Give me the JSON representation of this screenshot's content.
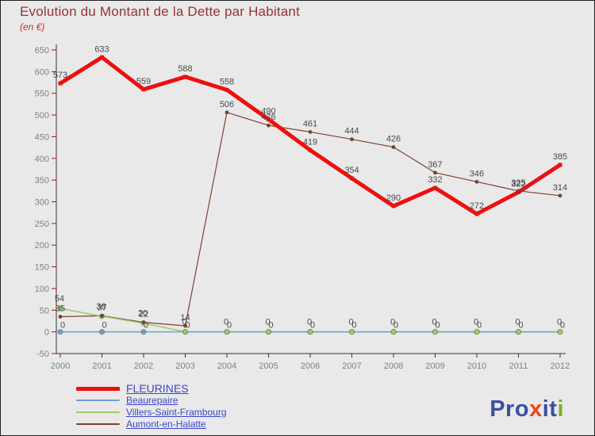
{
  "title": "Evolution du Montant de la Dette par Habitant",
  "subtitle": "(en €)",
  "chart_data": {
    "type": "line",
    "x": [
      "2000",
      "2001",
      "2002",
      "2003",
      "2004",
      "2005",
      "2006",
      "2007",
      "2008",
      "2009",
      "2010",
      "2011",
      "2012"
    ],
    "ylim": [
      -50,
      650
    ],
    "ytick_step": 50,
    "grid": false,
    "legend_position": "bottom-left",
    "axis_text_color": "#808080",
    "tick_color": "#cc0000",
    "axis_line_color": "#333333",
    "label_color": "#4a4a4a",
    "series": [
      {
        "name": "FLEURINES",
        "color": "#ee0f0f",
        "width": 5,
        "marker": "square",
        "marker_size": 2.5,
        "values": [
          573,
          633,
          559,
          588,
          558,
          490,
          419,
          354,
          290,
          332,
          272,
          322,
          385
        ]
      },
      {
        "name": "Beaurepaire",
        "color": "#6f9fcb",
        "width": 1.5,
        "marker": "circle",
        "marker_size": 3.2,
        "label_offset": [
          3,
          -5
        ],
        "values": [
          0,
          0,
          0,
          0,
          0,
          0,
          0,
          0,
          0,
          0,
          0,
          0,
          0
        ]
      },
      {
        "name": "Villers-Saint-Frambourg",
        "color": "#9bc968",
        "width": 1.5,
        "marker": "circle",
        "marker_size": 3.2,
        "label_offset": [
          -1,
          -9
        ],
        "values": [
          54,
          36,
          20,
          0,
          0,
          0,
          0,
          0,
          0,
          0,
          0,
          0,
          0
        ]
      },
      {
        "name": "Aumont-en-Halatte",
        "color": "#7e4031",
        "width": 1.2,
        "marker": "circle",
        "marker_size": 2.2,
        "values": [
          35,
          37,
          22,
          14,
          506,
          476,
          461,
          444,
          426,
          367,
          346,
          325,
          314
        ]
      }
    ]
  },
  "logo": {
    "letters": [
      {
        "ch": "P",
        "color": "#3c50a0"
      },
      {
        "ch": "r",
        "color": "#3c50a0"
      },
      {
        "ch": "o",
        "color": "#3c50a0"
      },
      {
        "ch": "x",
        "color": "#ea4a1a"
      },
      {
        "ch": "i",
        "color": "#3c50a0"
      },
      {
        "ch": "t",
        "color": "#3c50a0"
      },
      {
        "ch": "i",
        "color": "#76b222"
      }
    ]
  }
}
